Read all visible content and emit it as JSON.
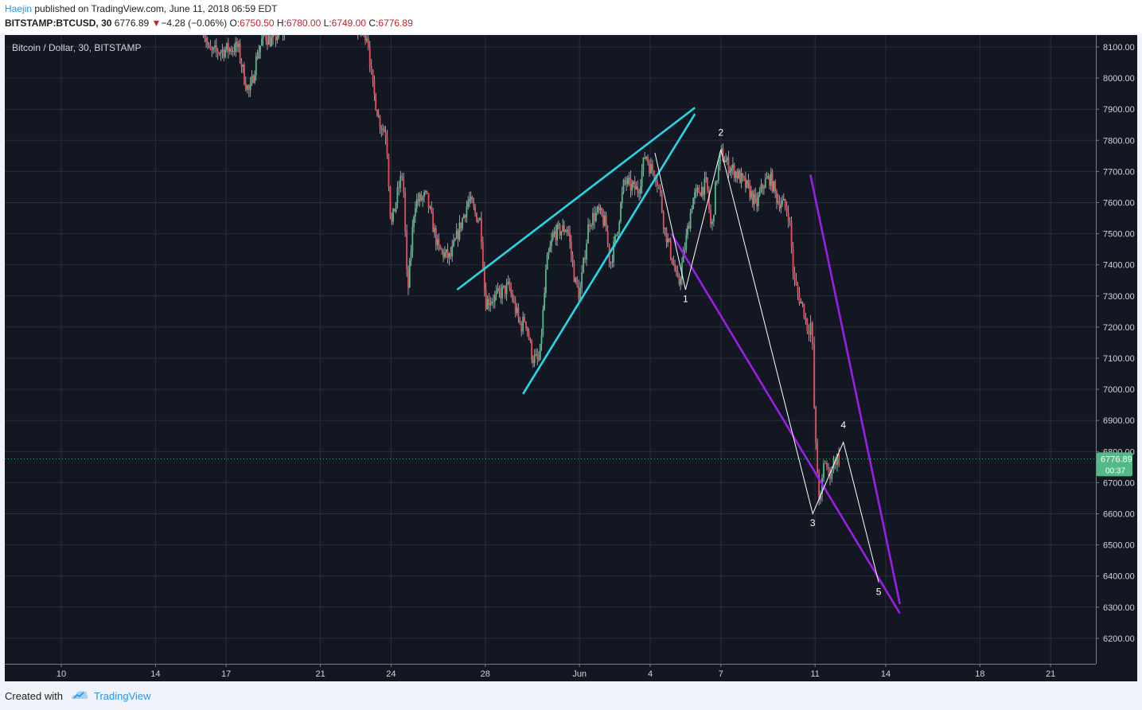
{
  "header": {
    "author": "Haejin",
    "published": "published on TradingView.com, June 11, 2018 06:59 EDT",
    "symbol": "BITSTAMP:BTCUSD, 30",
    "last": "6776.89",
    "arrow": "▼",
    "change": "−4.28 (−0.06%)",
    "o_label": "O:",
    "o_value": "6750.50",
    "h_label": "H:",
    "h_value": "6780.00",
    "l_label": "L:",
    "l_value": "6749.00",
    "c_label": "C:",
    "c_value": "6776.89"
  },
  "chart_data": {
    "type": "candlestick",
    "title": "Bitcoin / Dollar, 30, BITSTAMP",
    "x_ticks": [
      {
        "label": "10",
        "t": 0
      },
      {
        "label": "14",
        "t": 4
      },
      {
        "label": "17",
        "t": 7
      },
      {
        "label": "21",
        "t": 11
      },
      {
        "label": "24",
        "t": 14
      },
      {
        "label": "28",
        "t": 18
      },
      {
        "label": "Jun",
        "t": 22
      },
      {
        "label": "4",
        "t": 25
      },
      {
        "label": "7",
        "t": 28
      },
      {
        "label": "11",
        "t": 32
      },
      {
        "label": "14",
        "t": 35
      },
      {
        "label": "18",
        "t": 39
      },
      {
        "label": "21",
        "t": 42
      }
    ],
    "ylim": [
      6100,
      8150
    ],
    "y_ticks": [
      6200,
      6300,
      6400,
      6500,
      6600,
      6700,
      6800,
      6900,
      7000,
      7100,
      7200,
      7300,
      7400,
      7500,
      7600,
      7700,
      7800,
      7900,
      8000,
      8100
    ],
    "y_tick_labels": [
      "6200.00",
      "6300.00",
      "6400.00",
      "6500.00",
      "6600.00",
      "6700.00",
      "6800.00",
      "6900.00",
      "7000.00",
      "7100.00",
      "7200.00",
      "7300.00",
      "7400.00",
      "7500.00",
      "7600.00",
      "7700.00",
      "7800.00",
      "7900.00",
      "8000.00",
      "8100.00"
    ],
    "last_price": {
      "value": 6776.89,
      "label": "6776.89",
      "countdown": "00:37",
      "color": "#53b987"
    },
    "colors": {
      "background": "#131722",
      "up": "#53b987",
      "down": "#eb4d5c",
      "wick": "#d1d4dc",
      "cyan": "#26d7e8",
      "purple": "#9a1fe6",
      "wave": "#ffffff"
    },
    "price_path": [
      [
        6.0,
        8170
      ],
      [
        6.3,
        8080
      ],
      [
        7.5,
        8100
      ],
      [
        7.8,
        7990
      ],
      [
        8.0,
        7950
      ],
      [
        8.3,
        8070
      ],
      [
        8.6,
        8140
      ],
      [
        8.9,
        8120
      ],
      [
        9.5,
        8160
      ],
      [
        12.5,
        8160
      ],
      [
        13.0,
        8140
      ],
      [
        13.2,
        7980
      ],
      [
        13.5,
        7860
      ],
      [
        13.8,
        7820
      ],
      [
        14.0,
        7520
      ],
      [
        14.3,
        7640
      ],
      [
        14.5,
        7700
      ],
      [
        14.7,
        7300
      ],
      [
        15.0,
        7600
      ],
      [
        15.5,
        7620
      ],
      [
        16.0,
        7450
      ],
      [
        16.5,
        7420
      ],
      [
        17.0,
        7540
      ],
      [
        17.3,
        7610
      ],
      [
        17.6,
        7560
      ],
      [
        17.8,
        7540
      ],
      [
        18.0,
        7280
      ],
      [
        18.5,
        7300
      ],
      [
        19.0,
        7330
      ],
      [
        19.5,
        7200
      ],
      [
        19.7,
        7230
      ],
      [
        20.0,
        7100
      ],
      [
        20.3,
        7090
      ],
      [
        20.6,
        7400
      ],
      [
        20.9,
        7500
      ],
      [
        21.2,
        7510
      ],
      [
        21.5,
        7520
      ],
      [
        21.8,
        7350
      ],
      [
        22.0,
        7300
      ],
      [
        22.4,
        7540
      ],
      [
        22.8,
        7570
      ],
      [
        23.1,
        7530
      ],
      [
        23.3,
        7400
      ],
      [
        23.6,
        7510
      ],
      [
        23.9,
        7670
      ],
      [
        24.2,
        7650
      ],
      [
        24.5,
        7640
      ],
      [
        24.8,
        7760
      ],
      [
        25.0,
        7710
      ],
      [
        25.2,
        7700
      ],
      [
        25.4,
        7640
      ],
      [
        25.6,
        7520
      ],
      [
        25.9,
        7430
      ],
      [
        26.2,
        7330
      ],
      [
        26.5,
        7470
      ],
      [
        26.8,
        7610
      ],
      [
        27.1,
        7640
      ],
      [
        27.4,
        7660
      ],
      [
        27.6,
        7500
      ],
      [
        27.8,
        7670
      ],
      [
        28.0,
        7760
      ],
      [
        28.3,
        7720
      ],
      [
        28.6,
        7700
      ],
      [
        28.9,
        7670
      ],
      [
        29.2,
        7640
      ],
      [
        29.5,
        7590
      ],
      [
        29.8,
        7660
      ],
      [
        30.1,
        7680
      ],
      [
        30.4,
        7610
      ],
      [
        30.7,
        7590
      ],
      [
        30.9,
        7560
      ],
      [
        31.1,
        7350
      ],
      [
        31.3,
        7300
      ],
      [
        31.5,
        7260
      ],
      [
        31.7,
        7190
      ],
      [
        31.85,
        7220
      ],
      [
        32.0,
        6850
      ],
      [
        32.2,
        6620
      ],
      [
        32.4,
        6780
      ],
      [
        32.6,
        6720
      ],
      [
        32.75,
        6760
      ],
      [
        32.9,
        6780
      ],
      [
        33.05,
        6777
      ]
    ],
    "trendlines": [
      {
        "name": "cyan-upper",
        "color": "cyan",
        "from": [
          16.8,
          7320
        ],
        "to": [
          26.9,
          7905
        ]
      },
      {
        "name": "cyan-lower",
        "color": "cyan",
        "from": [
          19.6,
          6985
        ],
        "to": [
          26.9,
          7885
        ]
      },
      {
        "name": "purple-lower",
        "color": "purple",
        "from": [
          25.9,
          7500
        ],
        "to": [
          35.6,
          6280
        ]
      },
      {
        "name": "purple-upper",
        "color": "purple",
        "from": [
          31.8,
          7690
        ],
        "to": [
          35.6,
          6310
        ]
      }
    ],
    "waves": {
      "path": [
        [
          25.2,
          7760
        ],
        [
          26.5,
          7320
        ],
        [
          28.0,
          7770
        ],
        [
          31.9,
          6600
        ],
        [
          33.2,
          6830
        ],
        [
          34.7,
          6380
        ]
      ],
      "labels": [
        {
          "text": "1",
          "t": 26.5,
          "y": 7290
        },
        {
          "text": "2",
          "t": 28.0,
          "y": 7825
        },
        {
          "text": "3",
          "t": 31.9,
          "y": 6570
        },
        {
          "text": "4",
          "t": 33.2,
          "y": 6885
        },
        {
          "text": "5",
          "t": 34.7,
          "y": 6350
        }
      ]
    }
  },
  "footer": {
    "created": "Created with",
    "brand": "TradingView"
  }
}
